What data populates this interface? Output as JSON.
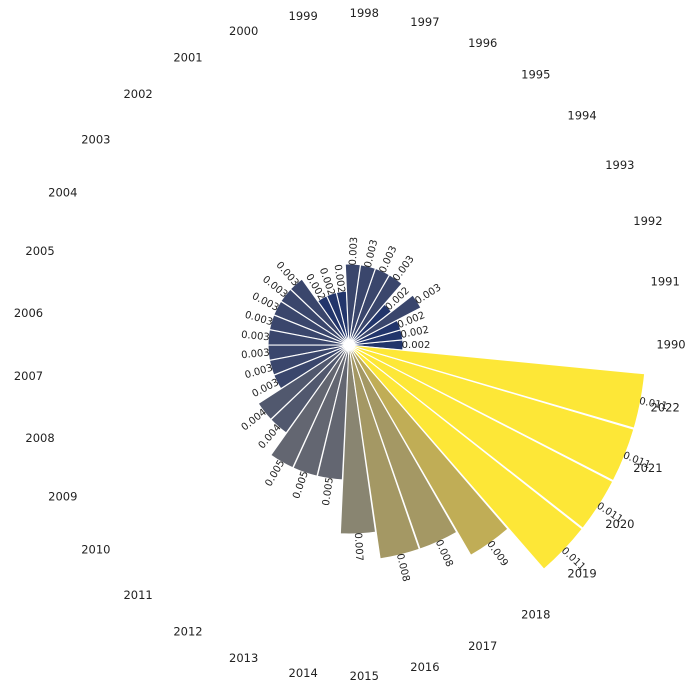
{
  "chart_data": {
    "type": "bar",
    "subtype": "circular-radial-bar",
    "title": "",
    "xlabel": "",
    "ylabel": "",
    "colormap": "cividis",
    "categories": [
      "1990",
      "1991",
      "1992",
      "1993",
      "1994",
      "1995",
      "1996",
      "1997",
      "1998",
      "1999",
      "2000",
      "2001",
      "2002",
      "2003",
      "2004",
      "2005",
      "2006",
      "2007",
      "2008",
      "2009",
      "2010",
      "2011",
      "2012",
      "2013",
      "2014",
      "2015",
      "2016",
      "2017",
      "2018",
      "2019",
      "2020",
      "2021",
      "2022"
    ],
    "values": [
      0.002,
      0.002,
      0.002,
      0.003,
      0.002,
      0.003,
      0.003,
      0.003,
      0.003,
      0.002,
      0.002,
      0.002,
      0.003,
      0.003,
      0.003,
      0.003,
      0.003,
      0.003,
      0.003,
      0.003,
      0.004,
      0.004,
      0.005,
      0.005,
      0.005,
      0.007,
      0.008,
      0.008,
      0.009,
      0.011,
      0.011,
      0.011,
      0.011
    ],
    "value_labels": [
      "0.002",
      "0.002",
      "0.002",
      "0.003",
      "0.002",
      "0.003",
      "0.003",
      "0.003",
      "0.003",
      "0.002",
      "0.002",
      "0.002",
      "0.003",
      "0.003",
      "0.003",
      "0.003",
      "0.003",
      "0.003",
      "0.003",
      "0.003",
      "0.004",
      "0.004",
      "0.005",
      "0.005",
      "0.005",
      "0.007",
      "0.008",
      "0.008",
      "0.009",
      "0.011",
      "0.011",
      "0.011",
      "0.011"
    ],
    "grid": false,
    "axes_visible": false,
    "colors": {
      "low": "#22356b",
      "high": "#fde737",
      "bar_edge": "#ffffff"
    }
  }
}
